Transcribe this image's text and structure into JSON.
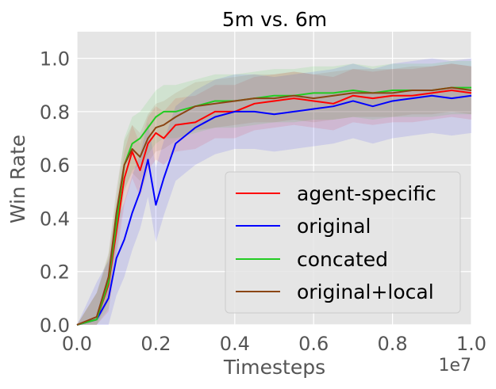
{
  "colors": {
    "background": "#e5e5e5",
    "grid": "#ffffff",
    "tick": "#555555"
  },
  "chart_data": {
    "type": "line",
    "title": "5m vs. 6m",
    "xlabel": "Timesteps",
    "ylabel": "Win Rate",
    "x_offset_label": "1e7",
    "xlim": [
      0.0,
      1.0
    ],
    "ylim": [
      0.0,
      1.1
    ],
    "x_ticks": [
      0.0,
      0.2,
      0.4,
      0.6,
      0.8,
      1.0
    ],
    "x_tick_labels": [
      "0.0",
      "0.2",
      "0.4",
      "0.6",
      "0.8",
      "1.0"
    ],
    "y_ticks": [
      0.0,
      0.2,
      0.4,
      0.6,
      0.8,
      1.0
    ],
    "y_tick_labels": [
      "0.0",
      "0.2",
      "0.4",
      "0.6",
      "0.8",
      "1.0"
    ],
    "grid": true,
    "legend_position": "lower-right",
    "x": [
      0.0,
      0.05,
      0.08,
      0.1,
      0.12,
      0.14,
      0.16,
      0.18,
      0.2,
      0.22,
      0.25,
      0.3,
      0.35,
      0.4,
      0.45,
      0.5,
      0.55,
      0.6,
      0.65,
      0.7,
      0.75,
      0.8,
      0.85,
      0.9,
      0.95,
      1.0
    ],
    "series": [
      {
        "name": "agent-specific",
        "color": "#ff0000",
        "values": [
          0.0,
          0.02,
          0.15,
          0.35,
          0.55,
          0.65,
          0.58,
          0.68,
          0.72,
          0.7,
          0.75,
          0.76,
          0.8,
          0.8,
          0.83,
          0.84,
          0.85,
          0.84,
          0.83,
          0.86,
          0.85,
          0.86,
          0.86,
          0.87,
          0.88,
          0.87
        ],
        "band": 0.1
      },
      {
        "name": "original",
        "color": "#0000ff",
        "values": [
          0.0,
          0.02,
          0.1,
          0.25,
          0.32,
          0.42,
          0.5,
          0.62,
          0.45,
          0.55,
          0.68,
          0.74,
          0.78,
          0.8,
          0.8,
          0.79,
          0.8,
          0.81,
          0.82,
          0.84,
          0.82,
          0.84,
          0.85,
          0.86,
          0.85,
          0.86
        ],
        "band": 0.14
      },
      {
        "name": "concated",
        "color": "#22cc22",
        "values": [
          0.0,
          0.02,
          0.16,
          0.38,
          0.6,
          0.68,
          0.7,
          0.74,
          0.78,
          0.8,
          0.8,
          0.82,
          0.84,
          0.84,
          0.85,
          0.86,
          0.86,
          0.87,
          0.87,
          0.88,
          0.87,
          0.88,
          0.88,
          0.88,
          0.89,
          0.89
        ],
        "band": 0.1
      },
      {
        "name": "original+local",
        "color": "#8b4513",
        "values": [
          0.0,
          0.03,
          0.18,
          0.42,
          0.6,
          0.66,
          0.63,
          0.7,
          0.74,
          0.75,
          0.78,
          0.82,
          0.83,
          0.84,
          0.85,
          0.85,
          0.86,
          0.85,
          0.86,
          0.87,
          0.87,
          0.87,
          0.88,
          0.88,
          0.89,
          0.88
        ],
        "band": 0.09
      }
    ]
  }
}
